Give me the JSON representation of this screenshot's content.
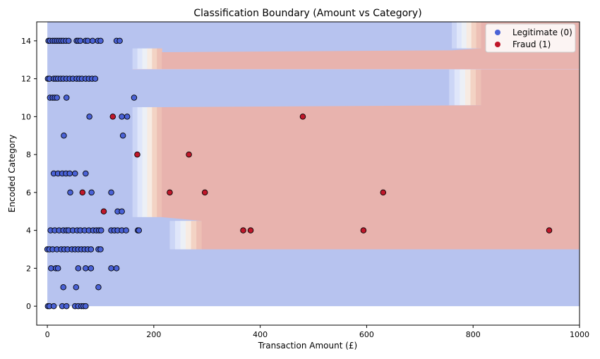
{
  "chart_data": {
    "type": "scatter",
    "title": "Classification Boundary (Amount vs Category)",
    "xlabel": "Transaction Amount (£)",
    "ylabel": "Encoded Category",
    "xlim": [
      -20,
      1000
    ],
    "ylim": [
      -1,
      15
    ],
    "xticks": [
      0,
      200,
      400,
      600,
      800,
      1000
    ],
    "yticks": [
      0,
      2,
      4,
      6,
      8,
      10,
      12,
      14
    ],
    "grid": false,
    "legend_position": "top-right",
    "colors": {
      "legit_region": "#b7c3ef",
      "fraud_region": "#e8b3ae",
      "legit_point": "#4a62d6",
      "fraud_point": "#c0172a",
      "gradient": [
        "#ccd6f6",
        "#dfe6fa",
        "#ecf0f6",
        "#f7ebe2",
        "#f3d3c4",
        "#edc0b5"
      ]
    },
    "boundary_regions": [
      {
        "class": "Fraud (1)",
        "x": [
          760,
          1000
        ],
        "y": [
          12.5,
          15
        ]
      },
      {
        "class": "Fraud (1)",
        "x": [
          215,
          1000
        ],
        "y": [
          12.5,
          13.5
        ]
      },
      {
        "class": "Fraud (1)",
        "x": [
          215,
          1000
        ],
        "y": [
          4.6,
          10.5
        ]
      },
      {
        "class": "Fraud (1)",
        "x": [
          290,
          1000
        ],
        "y": [
          3,
          10.5
        ]
      }
    ],
    "series": [
      {
        "name": "Legitimate (0)",
        "points": [
          [
            2,
            14
          ],
          [
            5,
            14
          ],
          [
            10,
            14
          ],
          [
            14,
            14
          ],
          [
            18,
            14
          ],
          [
            22,
            14
          ],
          [
            26,
            14
          ],
          [
            30,
            14
          ],
          [
            35,
            14
          ],
          [
            40,
            14
          ],
          [
            55,
            14
          ],
          [
            58,
            14
          ],
          [
            62,
            14
          ],
          [
            72,
            14
          ],
          [
            76,
            14
          ],
          [
            85,
            14
          ],
          [
            95,
            14
          ],
          [
            100,
            14
          ],
          [
            130,
            14
          ],
          [
            136,
            14
          ],
          [
            1,
            12
          ],
          [
            4,
            12
          ],
          [
            12,
            12
          ],
          [
            16,
            12
          ],
          [
            20,
            12
          ],
          [
            25,
            12
          ],
          [
            30,
            12
          ],
          [
            36,
            12
          ],
          [
            42,
            12
          ],
          [
            48,
            12
          ],
          [
            55,
            12
          ],
          [
            60,
            12
          ],
          [
            65,
            12
          ],
          [
            72,
            12
          ],
          [
            78,
            12
          ],
          [
            84,
            12
          ],
          [
            90,
            12
          ],
          [
            5,
            11
          ],
          [
            10,
            11
          ],
          [
            14,
            11
          ],
          [
            18,
            11
          ],
          [
            36,
            11
          ],
          [
            163,
            11
          ],
          [
            79,
            10
          ],
          [
            140,
            10
          ],
          [
            150,
            10
          ],
          [
            31,
            9
          ],
          [
            142,
            9
          ],
          [
            12,
            7
          ],
          [
            20,
            7
          ],
          [
            28,
            7
          ],
          [
            35,
            7
          ],
          [
            42,
            7
          ],
          [
            52,
            7
          ],
          [
            72,
            7
          ],
          [
            43,
            6
          ],
          [
            83,
            6
          ],
          [
            120,
            6
          ],
          [
            132,
            5
          ],
          [
            140,
            5
          ],
          [
            6,
            4
          ],
          [
            14,
            4
          ],
          [
            22,
            4
          ],
          [
            30,
            4
          ],
          [
            36,
            4
          ],
          [
            40,
            4
          ],
          [
            48,
            4
          ],
          [
            56,
            4
          ],
          [
            62,
            4
          ],
          [
            70,
            4
          ],
          [
            78,
            4
          ],
          [
            86,
            4
          ],
          [
            92,
            4
          ],
          [
            97,
            4
          ],
          [
            101,
            4
          ],
          [
            120,
            4
          ],
          [
            126,
            4
          ],
          [
            132,
            4
          ],
          [
            140,
            4
          ],
          [
            148,
            4
          ],
          [
            170,
            4
          ],
          [
            172,
            4
          ],
          [
            0,
            3
          ],
          [
            4,
            3
          ],
          [
            10,
            3
          ],
          [
            18,
            3
          ],
          [
            26,
            3
          ],
          [
            32,
            3
          ],
          [
            38,
            3
          ],
          [
            46,
            3
          ],
          [
            52,
            3
          ],
          [
            58,
            3
          ],
          [
            64,
            3
          ],
          [
            70,
            3
          ],
          [
            76,
            3
          ],
          [
            82,
            3
          ],
          [
            96,
            3
          ],
          [
            100,
            3
          ],
          [
            7,
            2
          ],
          [
            16,
            2
          ],
          [
            20,
            2
          ],
          [
            58,
            2
          ],
          [
            72,
            2
          ],
          [
            82,
            2
          ],
          [
            120,
            2
          ],
          [
            130,
            2
          ],
          [
            30,
            1
          ],
          [
            54,
            1
          ],
          [
            96,
            1
          ],
          [
            1,
            0
          ],
          [
            4,
            0
          ],
          [
            12,
            0
          ],
          [
            28,
            0
          ],
          [
            36,
            0
          ],
          [
            52,
            0
          ],
          [
            58,
            0
          ],
          [
            64,
            0
          ],
          [
            68,
            0
          ],
          [
            72,
            0
          ]
        ]
      },
      {
        "name": "Fraud (1)",
        "points": [
          [
            123,
            10
          ],
          [
            480,
            10
          ],
          [
            169,
            8
          ],
          [
            266,
            8
          ],
          [
            66,
            6
          ],
          [
            230,
            6
          ],
          [
            296,
            6
          ],
          [
            631,
            6
          ],
          [
            106,
            5
          ],
          [
            368,
            4
          ],
          [
            382,
            4
          ],
          [
            594,
            4
          ],
          [
            943,
            4
          ]
        ]
      }
    ]
  },
  "legend": {
    "legit_label": "Legitimate (0)",
    "fraud_label": "Fraud (1)"
  }
}
